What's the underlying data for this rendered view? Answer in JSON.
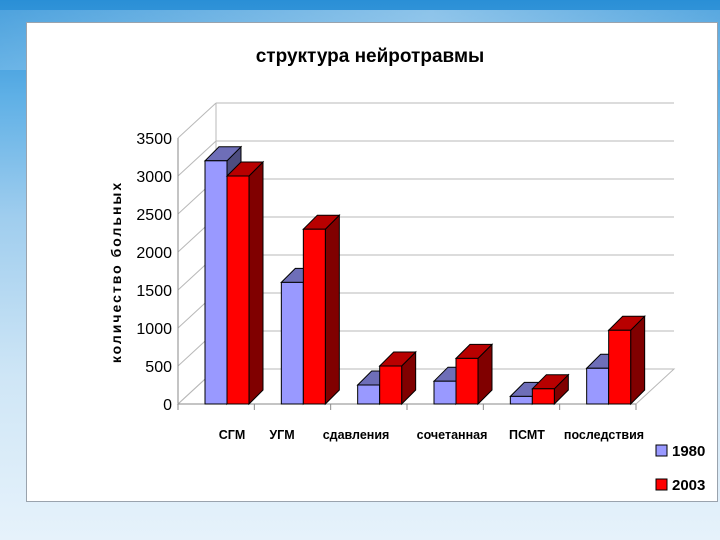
{
  "chart_data": {
    "type": "bar",
    "title": "структура нейротравмы",
    "xlabel": "",
    "ylabel": "количество больных",
    "categories": [
      "СГМ",
      "УГМ",
      "сдавления",
      "сочетанная",
      "ПСМТ",
      "последствия"
    ],
    "yticks": [
      "0",
      "500",
      "1000",
      "1500",
      "2000",
      "2500",
      "3000",
      "3500"
    ],
    "ylim": [
      0,
      3500
    ],
    "grid": true,
    "legend": "right",
    "series": [
      {
        "name": "1980",
        "values": [
          3200,
          1600,
          250,
          300,
          100,
          470
        ],
        "color": "#9999ff"
      },
      {
        "name": "2003",
        "values": [
          3000,
          2300,
          500,
          600,
          200,
          970
        ],
        "color": "#ff0000"
      }
    ]
  }
}
